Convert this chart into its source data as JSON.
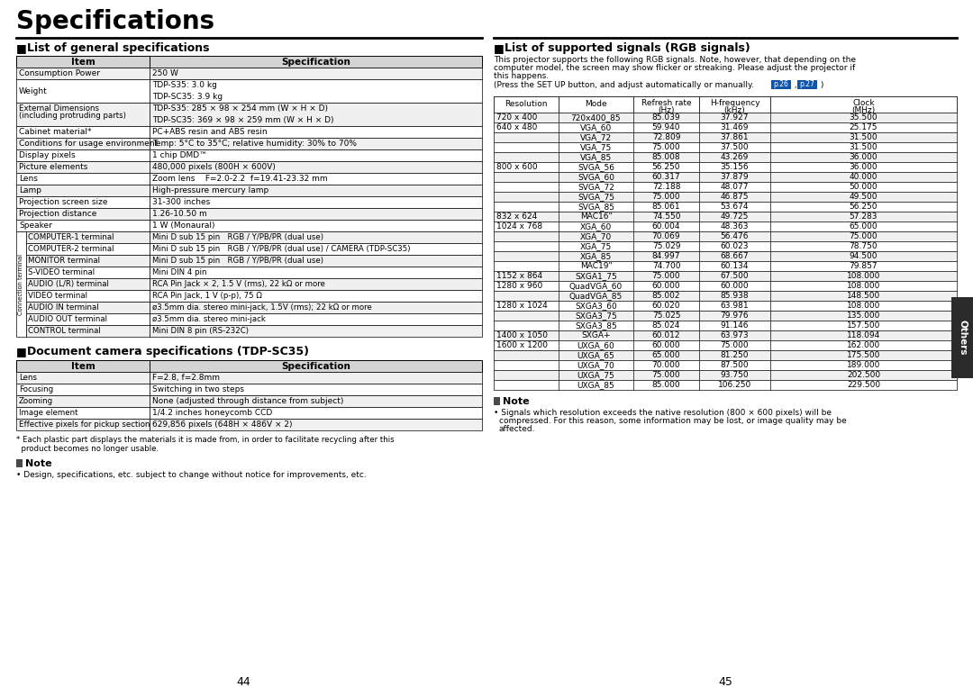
{
  "title": "Specifications",
  "page_bg": "#ffffff",
  "left_col_title": "List of general specifications",
  "right_col_title": "List of supported signals (RGB signals)",
  "doc_cam_title": "Document camera specifications (TDP-SC35)",
  "general_data": [
    [
      "Consumption Power",
      "250 W"
    ],
    [
      "Weight",
      "TDP-S35: 3.0 kg\nTDP-SC35: 3.9 kg"
    ],
    [
      "External Dimensions\n(including protruding parts)",
      "TDP-S35: 285 × 98 × 254 mm (W × H × D)\nTDP-SC35: 369 × 98 × 259 mm (W × H × D)"
    ],
    [
      "Cabinet material*",
      "PC+ABS resin and ABS resin"
    ],
    [
      "Conditions for usage environment",
      "Temp: 5°C to 35°C; relative humidity: 30% to 70%"
    ],
    [
      "Display pixels",
      "1 chip DMD™"
    ],
    [
      "Picture elements",
      "480,000 pixels (800H × 600V)"
    ],
    [
      "Lens",
      "Zoom lens    F=2.0-2.2  f=19.41-23.32 mm"
    ],
    [
      "Lamp",
      "High-pressure mercury lamp"
    ],
    [
      "Projection screen size",
      "31-300 inches"
    ],
    [
      "Projection distance",
      "1.26-10.50 m"
    ],
    [
      "Speaker",
      "1 W (Monaural)"
    ]
  ],
  "connection_data": [
    [
      "COMPUTER-1 terminal",
      "Mini D sub 15 pin   RGB / Y/PB/PR (dual use)"
    ],
    [
      "COMPUTER-2 terminal",
      "Mini D sub 15 pin   RGB / Y/PB/PR (dual use) / CAMERA (TDP-SC35)"
    ],
    [
      "MONITOR terminal",
      "Mini D sub 15 pin   RGB / Y/PB/PR (dual use)"
    ],
    [
      "S-VIDEO terminal",
      "Mini DIN 4 pin"
    ],
    [
      "AUDIO (L/R) terminal",
      "RCA Pin Jack × 2, 1.5 V (rms), 22 kΩ or more"
    ],
    [
      "VIDEO terminal",
      "RCA Pin Jack, 1 V (p-p), 75 Ω"
    ],
    [
      "AUDIO IN terminal",
      "ø3.5mm dia. stereo mini-jack, 1.5V (rms); 22 kΩ or more"
    ],
    [
      "AUDIO OUT terminal",
      "ø3.5mm dia. stereo mini-jack"
    ],
    [
      "CONTROL terminal",
      "Mini DIN 8 pin (RS-232C)"
    ]
  ],
  "doc_cam_data": [
    [
      "Lens",
      "F=2.8, f=2.8mm"
    ],
    [
      "Focusing",
      "Switching in two steps"
    ],
    [
      "Zooming",
      "None (adjusted through distance from subject)"
    ],
    [
      "Image element",
      "1/4.2 inches honeycomb CCD"
    ],
    [
      "Effective pixels for pickup section",
      "629,856 pixels (648H × 486V × 2)"
    ]
  ],
  "rgb_signals": [
    [
      "720 x 400",
      "720x400_85",
      "85.039",
      "37.927",
      "35.500"
    ],
    [
      "640 x 480",
      "VGA_60",
      "59.940",
      "31.469",
      "25.175"
    ],
    [
      "",
      "VGA_72",
      "72.809",
      "37.861",
      "31.500"
    ],
    [
      "",
      "VGA_75",
      "75.000",
      "37.500",
      "31.500"
    ],
    [
      "",
      "VGA_85",
      "85.008",
      "43.269",
      "36.000"
    ],
    [
      "800 x 600",
      "SVGA_56",
      "56.250",
      "35.156",
      "36.000"
    ],
    [
      "",
      "SVGA_60",
      "60.317",
      "37.879",
      "40.000"
    ],
    [
      "",
      "SVGA_72",
      "72.188",
      "48.077",
      "50.000"
    ],
    [
      "",
      "SVGA_75",
      "75.000",
      "46.875",
      "49.500"
    ],
    [
      "",
      "SVGA_85",
      "85.061",
      "53.674",
      "56.250"
    ],
    [
      "832 x 624",
      "MAC16\"",
      "74.550",
      "49.725",
      "57.283"
    ],
    [
      "1024 x 768",
      "XGA_60",
      "60.004",
      "48.363",
      "65.000"
    ],
    [
      "",
      "XGA_70",
      "70.069",
      "56.476",
      "75.000"
    ],
    [
      "",
      "XGA_75",
      "75.029",
      "60.023",
      "78.750"
    ],
    [
      "",
      "XGA_85",
      "84.997",
      "68.667",
      "94.500"
    ],
    [
      "",
      "MAC19\"",
      "74.700",
      "60.134",
      "79.857"
    ],
    [
      "1152 x 864",
      "SXGA1_75",
      "75.000",
      "67.500",
      "108.000"
    ],
    [
      "1280 x 960",
      "QuadVGA_60",
      "60.000",
      "60.000",
      "108.000"
    ],
    [
      "",
      "QuadVGA_85",
      "85.002",
      "85.938",
      "148.500"
    ],
    [
      "1280 x 1024",
      "SXGA3_60",
      "60.020",
      "63.981",
      "108.000"
    ],
    [
      "",
      "SXGA3_75",
      "75.025",
      "79.976",
      "135.000"
    ],
    [
      "",
      "SXGA3_85",
      "85.024",
      "91.146",
      "157.500"
    ],
    [
      "1400 x 1050",
      "SXGA+",
      "60.012",
      "63.973",
      "118.094"
    ],
    [
      "1600 x 1200",
      "UXGA_60",
      "60.000",
      "75.000",
      "162.000"
    ],
    [
      "",
      "UXGA_65",
      "65.000",
      "81.250",
      "175.500"
    ],
    [
      "",
      "UXGA_70",
      "70.000",
      "87.500",
      "189.000"
    ],
    [
      "",
      "UXGA_75",
      "75.000",
      "93.750",
      "202.500"
    ],
    [
      "",
      "UXGA_85",
      "85.000",
      "106.250",
      "229.500"
    ]
  ],
  "footnote_left": "* Each plastic part displays the materials it is made from, in order to facilitate recycling after this\n  product becomes no longer usable.",
  "note_left": "Design, specifications, etc. subject to change without notice for improvements, etc.",
  "note_right_line1": "Signals which resolution exceeds the native resolution (800 × 600 pixels) will be",
  "note_right_line2": "compressed. For this reason, some information may be lost, or image quality may be",
  "note_right_line3": "affected.",
  "others_tab_color": "#2b2b2b"
}
